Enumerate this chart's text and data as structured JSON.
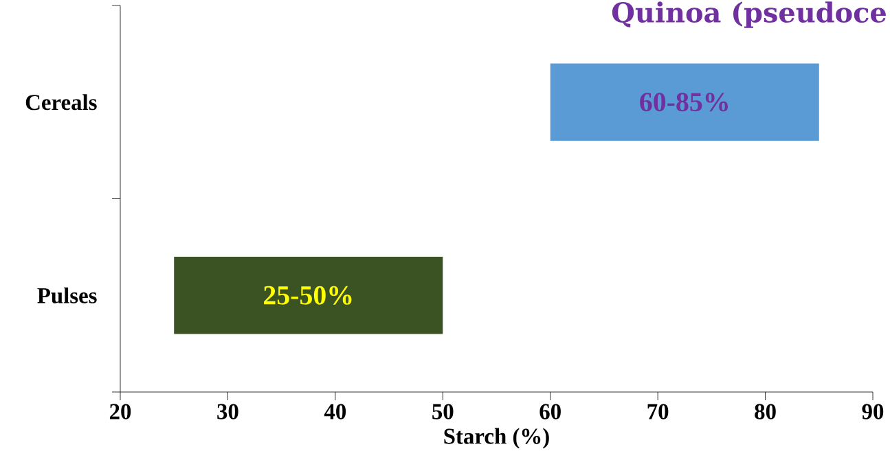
{
  "chart_data": {
    "type": "bar",
    "orientation": "horizontal",
    "title": "Quinoa (pseudoce",
    "xlabel": "Starch (%)",
    "categories": [
      "Cereals",
      "Pulses"
    ],
    "base": [
      60,
      25
    ],
    "values": [
      25,
      25
    ],
    "colors": [
      "#5b9bd5",
      "#3b5323"
    ],
    "annotations": [
      "60-85%",
      "25-50%"
    ],
    "xlim": [
      20,
      90
    ],
    "xticks": [
      20,
      30,
      40,
      50,
      60,
      70,
      80,
      90
    ]
  }
}
